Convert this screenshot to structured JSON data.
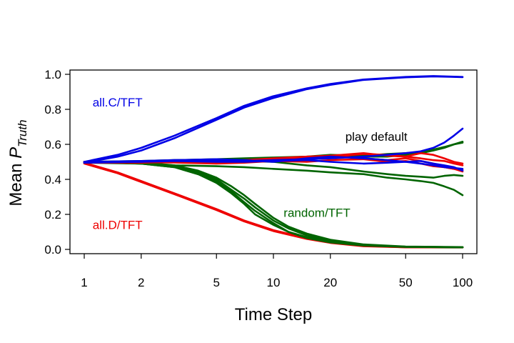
{
  "chart_data": {
    "type": "line",
    "xlabel": "Time Step",
    "ylabel": {
      "main": "Mean ",
      "symbol": "P",
      "subscript": "Truth"
    },
    "x_scale": "log",
    "xlim": [
      1,
      100
    ],
    "ylim": [
      0,
      1
    ],
    "x_ticks": [
      1,
      2,
      5,
      10,
      20,
      50,
      100
    ],
    "x_tick_labels": [
      "1",
      "2",
      "5",
      "10",
      "20",
      "50",
      "100"
    ],
    "y_ticks": [
      0,
      0.2,
      0.4,
      0.6,
      0.8,
      1.0
    ],
    "y_tick_labels": [
      "0.0",
      "0.2",
      "0.4",
      "0.6",
      "0.8",
      "1.0"
    ],
    "grid": false,
    "colors": {
      "blue": "#0000e6",
      "red": "#ee0000",
      "green": "#006400"
    },
    "annotations": [
      {
        "text": "all.C/TFT",
        "x": 1.5,
        "y": 0.84,
        "color": "#0000e6"
      },
      {
        "text": "play default",
        "x": 35,
        "y": 0.645,
        "color": "#000000"
      },
      {
        "text": "random/TFT",
        "x": 17,
        "y": 0.21,
        "color": "#006400"
      },
      {
        "text": "all.D/TFT",
        "x": 1.5,
        "y": 0.14,
        "color": "#ee0000"
      }
    ],
    "series": [
      {
        "color": "#0000e6",
        "x": [
          1,
          1.5,
          2,
          3,
          5,
          7,
          10,
          15,
          20,
          30,
          50,
          70,
          100
        ],
        "y": [
          0.5,
          0.54,
          0.58,
          0.65,
          0.75,
          0.82,
          0.875,
          0.92,
          0.945,
          0.97,
          0.985,
          0.99,
          0.985
        ]
      },
      {
        "color": "#0000e6",
        "x": [
          1,
          1.5,
          2,
          3,
          5,
          7,
          10,
          15,
          20,
          30,
          50,
          70,
          100
        ],
        "y": [
          0.495,
          0.53,
          0.565,
          0.635,
          0.74,
          0.81,
          0.865,
          0.915,
          0.94,
          0.968,
          0.983,
          0.988,
          0.984
        ]
      },
      {
        "color": "#ee0000",
        "x": [
          1,
          1.5,
          2,
          3,
          5,
          7,
          10,
          15,
          20,
          30,
          50,
          100
        ],
        "y": [
          0.495,
          0.44,
          0.39,
          0.32,
          0.23,
          0.165,
          0.11,
          0.065,
          0.04,
          0.02,
          0.012,
          0.012
        ]
      },
      {
        "color": "#ee0000",
        "x": [
          1,
          1.5,
          2,
          3,
          5,
          7,
          10,
          15,
          20,
          30,
          50,
          100
        ],
        "y": [
          0.49,
          0.435,
          0.385,
          0.315,
          0.225,
          0.16,
          0.105,
          0.06,
          0.037,
          0.018,
          0.012,
          0.011
        ]
      },
      {
        "color": "#006400",
        "x": [
          1,
          2,
          3,
          4,
          5,
          6,
          7,
          8,
          10,
          12,
          15,
          20,
          30,
          50,
          100
        ],
        "y": [
          0.5,
          0.49,
          0.47,
          0.43,
          0.39,
          0.33,
          0.27,
          0.22,
          0.15,
          0.1,
          0.07,
          0.045,
          0.025,
          0.015,
          0.012
        ]
      },
      {
        "color": "#006400",
        "x": [
          1,
          2,
          3,
          4,
          5,
          6,
          7,
          8,
          10,
          12,
          15,
          20,
          30,
          50,
          100
        ],
        "y": [
          0.5,
          0.495,
          0.475,
          0.44,
          0.4,
          0.34,
          0.29,
          0.24,
          0.165,
          0.12,
          0.08,
          0.05,
          0.025,
          0.015,
          0.012
        ]
      },
      {
        "color": "#006400",
        "x": [
          1,
          2,
          3,
          4,
          5,
          6,
          7,
          8,
          10,
          12,
          15,
          20,
          30,
          50,
          100
        ],
        "y": [
          0.495,
          0.49,
          0.47,
          0.43,
          0.38,
          0.32,
          0.26,
          0.2,
          0.14,
          0.1,
          0.065,
          0.04,
          0.022,
          0.014,
          0.012
        ]
      },
      {
        "color": "#006400",
        "x": [
          1,
          2,
          3,
          4,
          5,
          6,
          7,
          8,
          10,
          12,
          15,
          20,
          30,
          50,
          100
        ],
        "y": [
          0.5,
          0.497,
          0.48,
          0.45,
          0.41,
          0.36,
          0.31,
          0.26,
          0.18,
          0.13,
          0.09,
          0.055,
          0.028,
          0.016,
          0.013
        ]
      },
      {
        "color": "#006400",
        "x": [
          1,
          2,
          3,
          5,
          7,
          10,
          15,
          20,
          30,
          40,
          50,
          60,
          70,
          80,
          90,
          100
        ],
        "y": [
          0.5,
          0.49,
          0.48,
          0.475,
          0.47,
          0.46,
          0.45,
          0.44,
          0.43,
          0.41,
          0.4,
          0.39,
          0.38,
          0.36,
          0.34,
          0.31
        ]
      },
      {
        "color": "#006400",
        "x": [
          1,
          2,
          3,
          5,
          7,
          10,
          15,
          20,
          30,
          40,
          50,
          60,
          70,
          80,
          90,
          100
        ],
        "y": [
          0.5,
          0.5,
          0.5,
          0.51,
          0.505,
          0.5,
          0.48,
          0.47,
          0.445,
          0.43,
          0.42,
          0.415,
          0.41,
          0.42,
          0.425,
          0.42
        ]
      },
      {
        "color": "#006400",
        "x": [
          1,
          2,
          3,
          5,
          7,
          10,
          15,
          20,
          30,
          40,
          50,
          60,
          70,
          80,
          90,
          100
        ],
        "y": [
          0.5,
          0.505,
          0.51,
          0.515,
          0.52,
          0.525,
          0.53,
          0.54,
          0.535,
          0.545,
          0.55,
          0.555,
          0.57,
          0.585,
          0.6,
          0.61
        ]
      },
      {
        "color": "#006400",
        "x": [
          1,
          2,
          3,
          5,
          7,
          10,
          15,
          20,
          30,
          40,
          50,
          60,
          70,
          80,
          90,
          100
        ],
        "y": [
          0.495,
          0.5,
          0.505,
          0.5,
          0.5,
          0.51,
          0.52,
          0.525,
          0.53,
          0.53,
          0.54,
          0.55,
          0.565,
          0.58,
          0.6,
          0.615
        ]
      },
      {
        "color": "#ee0000",
        "x": [
          1,
          2,
          3,
          5,
          7,
          10,
          15,
          20,
          30,
          40,
          50,
          60,
          70,
          80,
          90,
          100
        ],
        "y": [
          0.5,
          0.5,
          0.505,
          0.5,
          0.51,
          0.52,
          0.53,
          0.535,
          0.52,
          0.51,
          0.52,
          0.505,
          0.49,
          0.47,
          0.46,
          0.445
        ]
      },
      {
        "color": "#ee0000",
        "x": [
          1,
          2,
          3,
          5,
          7,
          10,
          15,
          20,
          30,
          40,
          50,
          60,
          70,
          80,
          90,
          100
        ],
        "y": [
          0.495,
          0.495,
          0.5,
          0.495,
          0.5,
          0.51,
          0.52,
          0.53,
          0.545,
          0.54,
          0.53,
          0.55,
          0.54,
          0.52,
          0.5,
          0.49
        ]
      },
      {
        "color": "#ee0000",
        "x": [
          1,
          2,
          3,
          5,
          7,
          10,
          15,
          20,
          30,
          40,
          50,
          60,
          70,
          80,
          90,
          100
        ],
        "y": [
          0.5,
          0.498,
          0.496,
          0.49,
          0.495,
          0.505,
          0.5,
          0.51,
          0.515,
          0.5,
          0.505,
          0.49,
          0.475,
          0.47,
          0.46,
          0.455
        ]
      },
      {
        "color": "#ee0000",
        "x": [
          1,
          2,
          3,
          5,
          7,
          10,
          15,
          20,
          30,
          40,
          50,
          60,
          70,
          80,
          90,
          100
        ],
        "y": [
          0.5,
          0.5,
          0.5,
          0.505,
          0.51,
          0.515,
          0.52,
          0.535,
          0.55,
          0.535,
          0.53,
          0.52,
          0.51,
          0.505,
          0.49,
          0.48
        ]
      },
      {
        "color": "#0000e6",
        "x": [
          1,
          2,
          3,
          5,
          7,
          10,
          15,
          20,
          30,
          40,
          50,
          60,
          70,
          80,
          90,
          100
        ],
        "y": [
          0.5,
          0.5,
          0.51,
          0.515,
          0.51,
          0.5,
          0.52,
          0.53,
          0.52,
          0.51,
          0.5,
          0.49,
          0.48,
          0.47,
          0.465,
          0.46
        ]
      },
      {
        "color": "#0000e6",
        "x": [
          1,
          2,
          3,
          5,
          7,
          10,
          15,
          20,
          30,
          40,
          50,
          60,
          70,
          80,
          90,
          100
        ],
        "y": [
          0.5,
          0.505,
          0.51,
          0.51,
          0.505,
          0.51,
          0.515,
          0.52,
          0.53,
          0.54,
          0.55,
          0.56,
          0.58,
          0.61,
          0.65,
          0.69
        ]
      },
      {
        "color": "#0000e6",
        "x": [
          1,
          2,
          3,
          5,
          7,
          10,
          15,
          20,
          30,
          40,
          50,
          60,
          70,
          80,
          90,
          100
        ],
        "y": [
          0.495,
          0.5,
          0.505,
          0.5,
          0.5,
          0.505,
          0.51,
          0.5,
          0.49,
          0.495,
          0.5,
          0.505,
          0.49,
          0.48,
          0.47,
          0.45
        ]
      }
    ]
  }
}
